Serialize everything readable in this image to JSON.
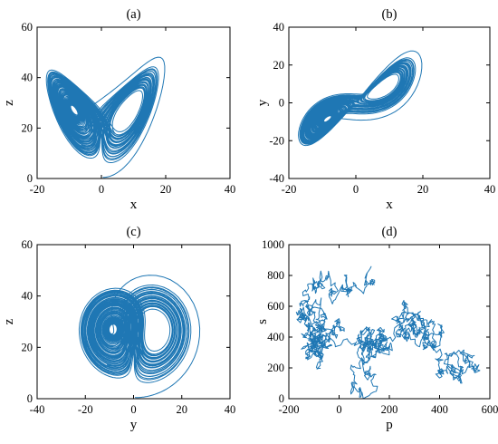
{
  "chart_data": [
    {
      "type": "line",
      "title": "(a)",
      "xlabel": "x",
      "ylabel": "z",
      "xlim": [
        -20,
        40
      ],
      "ylim": [
        0,
        60
      ],
      "xticks": [
        "-20",
        "0",
        "20",
        "40"
      ],
      "yticks": [
        "0",
        "20",
        "40",
        "60"
      ],
      "system": "lorenz",
      "projection": [
        "x",
        "z"
      ],
      "color": "#1f77b4"
    },
    {
      "type": "line",
      "title": "(b)",
      "xlabel": "x",
      "ylabel": "y",
      "xlim": [
        -20,
        40
      ],
      "ylim": [
        -40,
        40
      ],
      "xticks": [
        "-20",
        "0",
        "20",
        "40"
      ],
      "yticks": [
        "-40",
        "-20",
        "0",
        "20",
        "40"
      ],
      "system": "lorenz",
      "projection": [
        "x",
        "y"
      ],
      "color": "#1f77b4"
    },
    {
      "type": "line",
      "title": "(c)",
      "xlabel": "y",
      "ylabel": "z",
      "xlim": [
        -40,
        40
      ],
      "ylim": [
        0,
        60
      ],
      "xticks": [
        "-40",
        "-20",
        "0",
        "20",
        "40"
      ],
      "yticks": [
        "0",
        "20",
        "40",
        "60"
      ],
      "system": "lorenz",
      "projection": [
        "y",
        "z"
      ],
      "color": "#1f77b4"
    },
    {
      "type": "line",
      "title": "(d)",
      "xlabel": "p",
      "ylabel": "s",
      "xlim": [
        -200,
        600
      ],
      "ylim": [
        0,
        1000
      ],
      "xticks": [
        "-200",
        "0",
        "200",
        "400",
        "600"
      ],
      "yticks": [
        "0",
        "200",
        "400",
        "600",
        "800",
        "1000"
      ],
      "system": "random-walk",
      "projection": [
        "p",
        "s"
      ],
      "x_range_of_data": [
        -170,
        560
      ],
      "y_range_of_data": [
        0,
        860
      ],
      "color": "#1f77b4"
    }
  ]
}
